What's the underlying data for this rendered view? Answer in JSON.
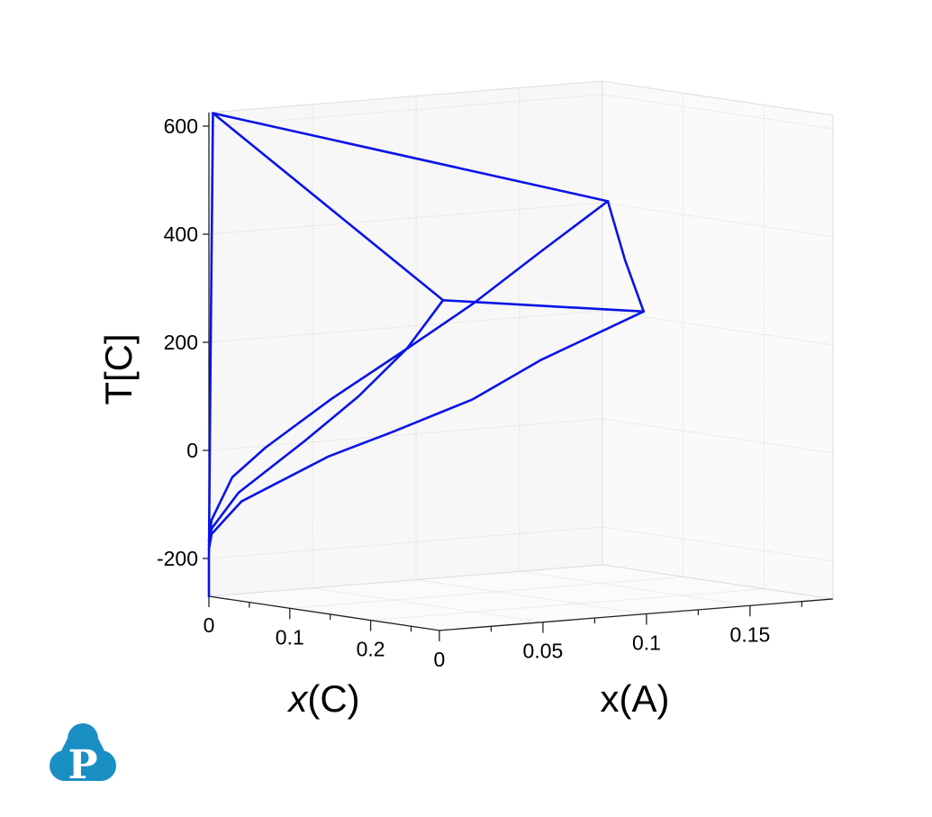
{
  "chart_data": {
    "type": "line3d",
    "title": "",
    "axes": {
      "xC": {
        "label_var": "x",
        "label_rest": "(C)",
        "range": [
          0,
          0.285
        ],
        "ticks": [
          0,
          0.1,
          0.2
        ],
        "tick_labels": [
          "0",
          "0.1",
          "0.2"
        ],
        "minor_ticks": [
          0.05,
          0.15,
          0.25
        ]
      },
      "xA": {
        "label": "x(A)",
        "range": [
          0,
          0.19
        ],
        "ticks": [
          0,
          0.05,
          0.1,
          0.15
        ],
        "tick_labels": [
          "0",
          "0.05",
          "0.1",
          "0.15"
        ],
        "minor_ticks": [
          0.025,
          0.075,
          0.125,
          0.175
        ]
      },
      "T": {
        "label": "T[C]",
        "range": [
          -270,
          625
        ],
        "ticks": [
          -200,
          0,
          200,
          400,
          600
        ],
        "tick_labels": [
          "-200",
          "0",
          "200",
          "400",
          "600"
        ]
      }
    },
    "grid": true,
    "line_color": "#0a14e6",
    "point_order": [
      "x(C)",
      "x(A)",
      "T"
    ],
    "series": [
      {
        "points": [
          [
            0.005,
            0,
            625
          ],
          [
            0.002,
            0,
            167
          ],
          [
            0,
            0,
            -200
          ],
          [
            0,
            0,
            -270
          ]
        ]
      },
      {
        "points": [
          [
            0.005,
            0,
            625
          ],
          [
            0,
            0.1926,
            402
          ]
        ]
      },
      {
        "points": [
          [
            0.005,
            0,
            625
          ],
          [
            0.2895,
            0,
            342
          ]
        ]
      },
      {
        "points": [
          [
            0.2895,
            0,
            342
          ],
          [
            0.051,
            0.19,
            210
          ]
        ]
      },
      {
        "points": [
          [
            0,
            0.1926,
            402
          ],
          [
            0.028,
            0.19,
            300
          ],
          [
            0.051,
            0.19,
            210
          ]
        ]
      },
      {
        "points": [
          [
            0,
            0.1926,
            402
          ],
          [
            0,
            0.16,
            318
          ],
          [
            0,
            0.1274,
            232
          ],
          [
            0,
            0.0957,
            159
          ],
          [
            0,
            0.0591,
            77
          ],
          [
            0,
            0.0274,
            -3
          ],
          [
            0,
            0.0113,
            -53
          ],
          [
            0,
            0.0013,
            -129
          ],
          [
            0,
            0,
            -167
          ]
        ]
      },
      {
        "points": [
          [
            0.2895,
            0,
            342
          ],
          [
            0.245,
            0,
            243
          ],
          [
            0.185,
            0,
            141
          ],
          [
            0.118,
            0,
            43
          ],
          [
            0.0367,
            0,
            -70
          ],
          [
            0.0033,
            0,
            -144
          ],
          [
            0,
            0,
            -175
          ]
        ]
      },
      {
        "points": [
          [
            0.051,
            0.19,
            210
          ],
          [
            0.039,
            0.1448,
            131
          ],
          [
            0.031,
            0.1153,
            66
          ],
          [
            0.0216,
            0.0799,
            14
          ],
          [
            0.0141,
            0.0523,
            -24
          ],
          [
            0.0038,
            0.0142,
            -98
          ],
          [
            0.0003,
            0.0012,
            -155
          ],
          [
            0,
            0,
            -183
          ]
        ]
      }
    ]
  },
  "logo": {
    "letter": "P",
    "color": "#1a8fc4"
  }
}
